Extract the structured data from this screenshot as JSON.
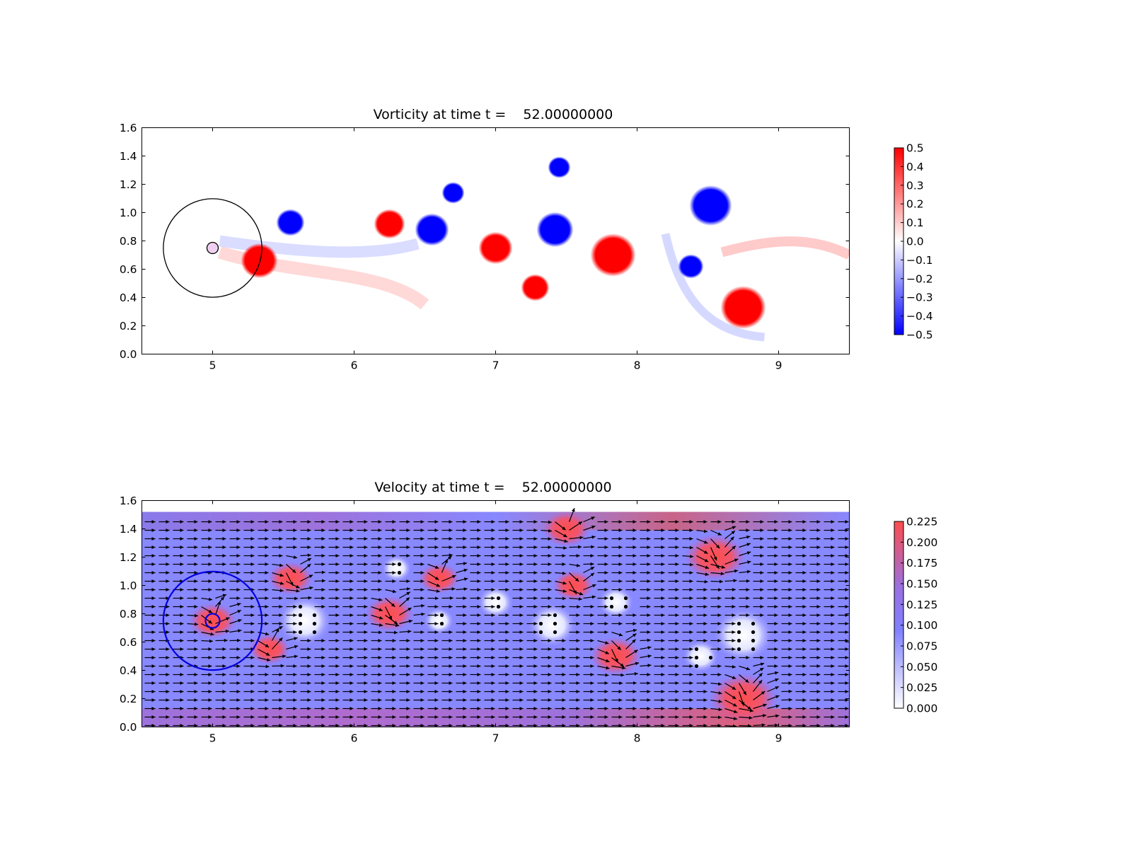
{
  "chart_data": [
    {
      "type": "heatmap",
      "title": "Vorticity at time t =    52.00000000",
      "xlabel": "",
      "ylabel": "",
      "xlim": [
        4.5,
        9.5
      ],
      "ylim": [
        0.0,
        1.6
      ],
      "xticks": [
        "5",
        "6",
        "7",
        "8",
        "9"
      ],
      "yticks": [
        "0.0",
        "0.2",
        "0.4",
        "0.6",
        "0.8",
        "1.0",
        "1.2",
        "1.4",
        "1.6"
      ],
      "colormap": "bwr",
      "colorbar": {
        "range": [
          -0.5,
          0.5
        ],
        "ticks": [
          "0.5",
          "0.4",
          "0.3",
          "0.2",
          "0.1",
          "0.0",
          "−0.1",
          "−0.2",
          "−0.3",
          "−0.4",
          "−0.5"
        ]
      },
      "cylinder": {
        "center": [
          5.0,
          0.75
        ],
        "radius": 0.04
      },
      "domain_circle": {
        "center": [
          5.0,
          0.75
        ],
        "radius": 0.35
      },
      "vortices": [
        {
          "x": 5.33,
          "y": 0.66,
          "r": 0.13,
          "sign": 1
        },
        {
          "x": 5.55,
          "y": 0.93,
          "r": 0.1,
          "sign": -1
        },
        {
          "x": 6.25,
          "y": 0.92,
          "r": 0.11,
          "sign": 1
        },
        {
          "x": 6.55,
          "y": 0.88,
          "r": 0.12,
          "sign": -1
        },
        {
          "x": 6.7,
          "y": 1.14,
          "r": 0.08,
          "sign": -1
        },
        {
          "x": 7.0,
          "y": 0.75,
          "r": 0.12,
          "sign": 1
        },
        {
          "x": 7.28,
          "y": 0.47,
          "r": 0.1,
          "sign": 1
        },
        {
          "x": 7.42,
          "y": 0.88,
          "r": 0.13,
          "sign": -1
        },
        {
          "x": 7.45,
          "y": 1.32,
          "r": 0.08,
          "sign": -1
        },
        {
          "x": 7.83,
          "y": 0.7,
          "r": 0.16,
          "sign": 1
        },
        {
          "x": 8.38,
          "y": 0.62,
          "r": 0.09,
          "sign": -1
        },
        {
          "x": 8.52,
          "y": 1.05,
          "r": 0.15,
          "sign": -1
        },
        {
          "x": 8.75,
          "y": 0.33,
          "r": 0.16,
          "sign": 1
        }
      ]
    },
    {
      "type": "heatmap",
      "title": "Velocity at time t =    52.00000000",
      "xlabel": "",
      "ylabel": "",
      "xlim": [
        4.5,
        9.5
      ],
      "ylim": [
        0.0,
        1.6
      ],
      "xticks": [
        "5",
        "6",
        "7",
        "8",
        "9"
      ],
      "yticks": [
        "0.0",
        "0.2",
        "0.4",
        "0.6",
        "0.8",
        "1.0",
        "1.2",
        "1.4",
        "1.6"
      ],
      "colormap": "velocity-magnitude",
      "colorbar": {
        "range": [
          0.0,
          0.225
        ],
        "ticks": [
          "0.225",
          "0.200",
          "0.175",
          "0.150",
          "0.125",
          "0.100",
          "0.075",
          "0.050",
          "0.025",
          "0.000"
        ]
      },
      "field_top": 1.52,
      "quiver": true,
      "cylinder": {
        "center": [
          5.0,
          0.75
        ],
        "radius": 0.05
      },
      "domain_circle": {
        "center": [
          5.0,
          0.75
        ],
        "radius": 0.35
      },
      "slow_regions": [
        {
          "x": 5.65,
          "y": 0.75,
          "r": 0.18
        },
        {
          "x": 6.6,
          "y": 0.75,
          "r": 0.1
        },
        {
          "x": 7.0,
          "y": 0.88,
          "r": 0.12
        },
        {
          "x": 7.4,
          "y": 0.72,
          "r": 0.16
        },
        {
          "x": 7.85,
          "y": 0.88,
          "r": 0.12
        },
        {
          "x": 8.45,
          "y": 0.5,
          "r": 0.12
        },
        {
          "x": 8.75,
          "y": 0.65,
          "r": 0.2
        },
        {
          "x": 6.3,
          "y": 1.12,
          "r": 0.1
        }
      ],
      "fast_regions": [
        {
          "x": 5.55,
          "y": 1.05,
          "r": 0.13
        },
        {
          "x": 5.4,
          "y": 0.55,
          "r": 0.12
        },
        {
          "x": 6.25,
          "y": 0.8,
          "r": 0.14
        },
        {
          "x": 6.6,
          "y": 1.05,
          "r": 0.12
        },
        {
          "x": 7.5,
          "y": 1.4,
          "r": 0.14
        },
        {
          "x": 7.55,
          "y": 1.0,
          "r": 0.12
        },
        {
          "x": 7.85,
          "y": 0.5,
          "r": 0.15
        },
        {
          "x": 8.55,
          "y": 1.2,
          "r": 0.18
        },
        {
          "x": 8.75,
          "y": 0.2,
          "r": 0.2
        },
        {
          "x": 5.0,
          "y": 0.75,
          "r": 0.14
        }
      ]
    }
  ]
}
